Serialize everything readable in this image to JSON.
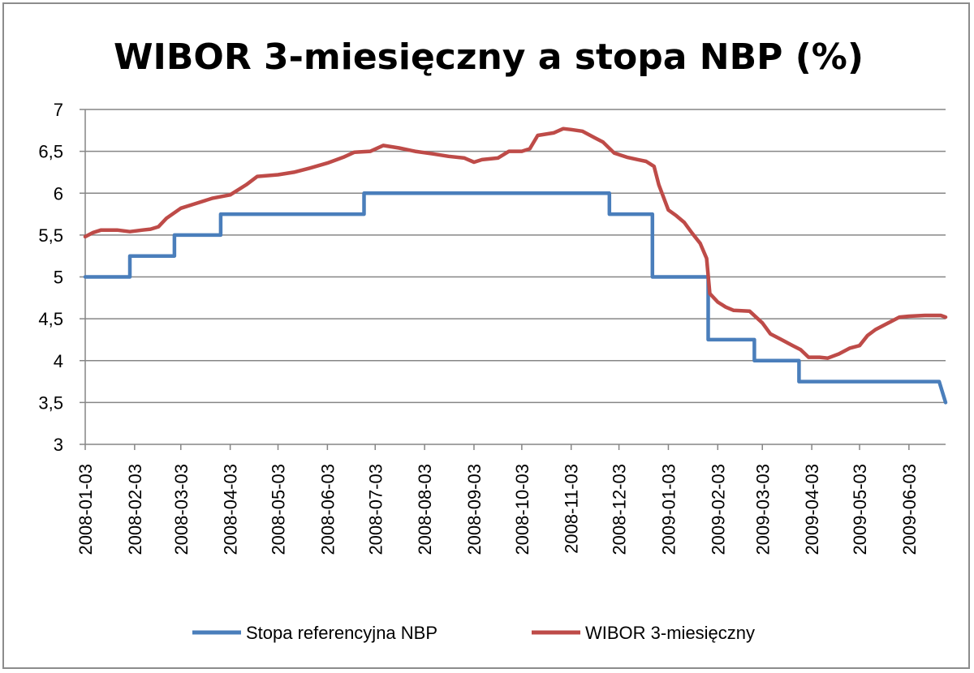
{
  "chart_data": {
    "type": "line",
    "title": "WIBOR 3-miesięczny a stopa NBP (%)",
    "xlabel": "",
    "ylabel": "",
    "ylim": [
      3,
      7
    ],
    "yticks": [
      "3",
      "3,5",
      "4",
      "4,5",
      "5",
      "5,5",
      "6",
      "6,5",
      "7"
    ],
    "ytick_values": [
      3,
      3.5,
      4,
      4.5,
      5,
      5.5,
      6,
      6.5,
      7
    ],
    "xticks": [
      "2008-01-03",
      "2008-02-03",
      "2008-03-03",
      "2008-04-03",
      "2008-05-03",
      "2008-06-03",
      "2008-07-03",
      "2008-08-03",
      "2008-09-03",
      "2008-10-03",
      "2008-11-03",
      "2008-12-03",
      "2009-01-03",
      "2009-02-03",
      "2009-03-03",
      "2009-04-03",
      "2009-05-03",
      "2009-06-03"
    ],
    "xlim": [
      "2008-01-03",
      "2009-06-26"
    ],
    "grid": "horizontal",
    "legend_position": "bottom",
    "series": [
      {
        "name": "Stopa referencyjna NBP",
        "color": "#4a7ebb",
        "step": true,
        "points": [
          [
            "2008-01-03",
            5.0
          ],
          [
            "2008-01-31",
            5.0
          ],
          [
            "2008-01-31",
            5.25
          ],
          [
            "2008-02-28",
            5.25
          ],
          [
            "2008-02-28",
            5.5
          ],
          [
            "2008-03-28",
            5.5
          ],
          [
            "2008-03-28",
            5.75
          ],
          [
            "2008-06-26",
            5.75
          ],
          [
            "2008-06-26",
            6.0
          ],
          [
            "2008-11-27",
            6.0
          ],
          [
            "2008-11-27",
            5.75
          ],
          [
            "2008-12-24",
            5.75
          ],
          [
            "2008-12-24",
            5.0
          ],
          [
            "2009-01-28",
            5.0
          ],
          [
            "2009-01-28",
            4.25
          ],
          [
            "2009-02-26",
            4.25
          ],
          [
            "2009-02-26",
            4.0
          ],
          [
            "2009-03-26",
            4.0
          ],
          [
            "2009-03-26",
            3.75
          ],
          [
            "2009-06-22",
            3.75
          ],
          [
            "2009-06-26",
            3.5
          ]
        ]
      },
      {
        "name": "WIBOR 3-miesięczny",
        "color": "#be4b48",
        "step": false,
        "points": [
          [
            "2008-01-03",
            5.48
          ],
          [
            "2008-01-08",
            5.53
          ],
          [
            "2008-01-13",
            5.56
          ],
          [
            "2008-01-23",
            5.56
          ],
          [
            "2008-01-31",
            5.54
          ],
          [
            "2008-02-08",
            5.56
          ],
          [
            "2008-02-13",
            5.57
          ],
          [
            "2008-02-18",
            5.6
          ],
          [
            "2008-02-23",
            5.7
          ],
          [
            "2008-03-03",
            5.82
          ],
          [
            "2008-03-13",
            5.88
          ],
          [
            "2008-03-23",
            5.94
          ],
          [
            "2008-04-03",
            5.98
          ],
          [
            "2008-04-13",
            6.1
          ],
          [
            "2008-04-20",
            6.2
          ],
          [
            "2008-05-03",
            6.22
          ],
          [
            "2008-05-13",
            6.25
          ],
          [
            "2008-05-23",
            6.3
          ],
          [
            "2008-06-03",
            6.36
          ],
          [
            "2008-06-13",
            6.43
          ],
          [
            "2008-06-20",
            6.49
          ],
          [
            "2008-06-30",
            6.5
          ],
          [
            "2008-07-08",
            6.57
          ],
          [
            "2008-07-18",
            6.54
          ],
          [
            "2008-07-28",
            6.5
          ],
          [
            "2008-08-08",
            6.47
          ],
          [
            "2008-08-18",
            6.44
          ],
          [
            "2008-08-28",
            6.42
          ],
          [
            "2008-09-03",
            6.37
          ],
          [
            "2008-09-08",
            6.4
          ],
          [
            "2008-09-18",
            6.42
          ],
          [
            "2008-09-25",
            6.5
          ],
          [
            "2008-10-03",
            6.5
          ],
          [
            "2008-10-08",
            6.53
          ],
          [
            "2008-10-13",
            6.69
          ],
          [
            "2008-10-23",
            6.72
          ],
          [
            "2008-10-29",
            6.77
          ],
          [
            "2008-11-03",
            6.76
          ],
          [
            "2008-11-10",
            6.74
          ],
          [
            "2008-11-18",
            6.66
          ],
          [
            "2008-11-23",
            6.61
          ],
          [
            "2008-11-30",
            6.48
          ],
          [
            "2008-12-08",
            6.43
          ],
          [
            "2008-12-15",
            6.4
          ],
          [
            "2008-12-20",
            6.38
          ],
          [
            "2008-12-25",
            6.32
          ],
          [
            "2008-12-28",
            6.1
          ],
          [
            "2009-01-03",
            5.8
          ],
          [
            "2009-01-08",
            5.73
          ],
          [
            "2009-01-13",
            5.65
          ],
          [
            "2009-01-18",
            5.52
          ],
          [
            "2009-01-23",
            5.4
          ],
          [
            "2009-01-27",
            5.22
          ],
          [
            "2009-01-29",
            4.8
          ],
          [
            "2009-02-03",
            4.7
          ],
          [
            "2009-02-08",
            4.64
          ],
          [
            "2009-02-13",
            4.6
          ],
          [
            "2009-02-23",
            4.59
          ],
          [
            "2009-03-03",
            4.45
          ],
          [
            "2009-03-08",
            4.32
          ],
          [
            "2009-03-15",
            4.25
          ],
          [
            "2009-03-22",
            4.18
          ],
          [
            "2009-03-27",
            4.13
          ],
          [
            "2009-04-01",
            4.04
          ],
          [
            "2009-04-08",
            4.04
          ],
          [
            "2009-04-13",
            4.03
          ],
          [
            "2009-04-20",
            4.08
          ],
          [
            "2009-04-27",
            4.15
          ],
          [
            "2009-05-03",
            4.18
          ],
          [
            "2009-05-08",
            4.3
          ],
          [
            "2009-05-13",
            4.37
          ],
          [
            "2009-05-18",
            4.42
          ],
          [
            "2009-05-23",
            4.47
          ],
          [
            "2009-05-28",
            4.52
          ],
          [
            "2009-06-03",
            4.53
          ],
          [
            "2009-06-13",
            4.54
          ],
          [
            "2009-06-23",
            4.54
          ],
          [
            "2009-06-26",
            4.52
          ]
        ]
      }
    ]
  }
}
